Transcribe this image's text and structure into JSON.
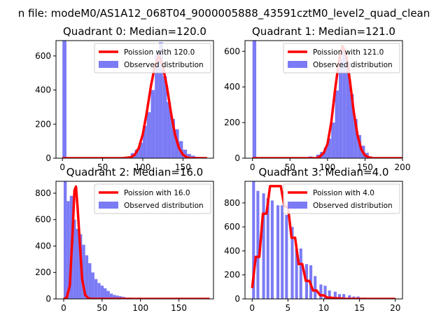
{
  "figure": {
    "suptitle": "n file: modeM0/AS1A12_068T04_9000005888_43591cztM0_level2_quad_clean"
  },
  "chart_data": [
    {
      "type": "bar",
      "title": "Quadrant 0: Median=120.0",
      "bar_color": "#7b7bf5",
      "line_color": "#ff0000",
      "xlim": [
        -8,
        188
      ],
      "ylim": [
        0,
        690
      ],
      "xticks": [
        0,
        50,
        100,
        150
      ],
      "yticks": [
        0,
        200,
        400,
        600
      ],
      "bin_width": 5,
      "hist": {
        "x": [
          0,
          85,
          90,
          95,
          100,
          105,
          110,
          115,
          120,
          125,
          130,
          135,
          140,
          145,
          150,
          155,
          160,
          165,
          170,
          175
        ],
        "y": [
          690,
          30,
          50,
          90,
          190,
          270,
          400,
          610,
          680,
          480,
          330,
          230,
          170,
          100,
          50,
          25,
          15,
          8,
          5,
          0
        ]
      },
      "line": {
        "x": [
          0,
          75,
          85,
          90,
          95,
          100,
          105,
          110,
          115,
          120,
          125,
          130,
          135,
          140,
          145,
          150,
          155,
          160,
          180
        ],
        "y": [
          0,
          0,
          5,
          20,
          60,
          140,
          270,
          420,
          540,
          600,
          540,
          420,
          270,
          140,
          60,
          20,
          5,
          0,
          0
        ]
      },
      "legend": {
        "line_label": "Poission with 120.0",
        "bar_label": "Observed distribution",
        "position": "upper right"
      }
    },
    {
      "type": "bar",
      "title": "Quadrant 1: Median=121.0",
      "bar_color": "#7b7bf5",
      "line_color": "#ff0000",
      "xlim": [
        -10,
        200
      ],
      "ylim": [
        0,
        660
      ],
      "xticks": [
        0,
        50,
        100,
        150,
        200
      ],
      "yticks": [
        0,
        200,
        400,
        600
      ],
      "bin_width": 5,
      "hist": {
        "x": [
          0,
          65,
          75,
          85,
          90,
          95,
          100,
          105,
          110,
          115,
          120,
          125,
          130,
          135,
          140,
          145,
          150,
          155,
          160,
          170
        ],
        "y": [
          660,
          5,
          10,
          20,
          35,
          60,
          110,
          200,
          380,
          560,
          620,
          540,
          360,
          220,
          130,
          70,
          30,
          10,
          5,
          5
        ]
      },
      "line": {
        "x": [
          0,
          85,
          90,
          95,
          100,
          105,
          110,
          115,
          120,
          125,
          130,
          135,
          140,
          145,
          150,
          155,
          160,
          200
        ],
        "y": [
          0,
          0,
          10,
          30,
          80,
          200,
          380,
          540,
          630,
          580,
          430,
          260,
          130,
          50,
          15,
          5,
          0,
          0
        ]
      },
      "legend": {
        "line_label": "Poission with 121.0",
        "bar_label": "Observed distribution",
        "position": "upper right"
      }
    },
    {
      "type": "bar",
      "title": "Quadrant 2: Median=16.0",
      "bar_color": "#7b7bf5",
      "line_color": "#ff0000",
      "xlim": [
        -10,
        195
      ],
      "ylim": [
        0,
        890
      ],
      "xticks": [
        0,
        50,
        100,
        150
      ],
      "yticks": [
        0,
        200,
        400,
        600,
        800
      ],
      "bin_width": 4,
      "hist": {
        "x": [
          0,
          4,
          8,
          12,
          16,
          20,
          24,
          28,
          32,
          36,
          40,
          44,
          48,
          52,
          56,
          60,
          64,
          68,
          72,
          76,
          80,
          84,
          88,
          92,
          96,
          100,
          104,
          108
        ],
        "y": [
          890,
          740,
          780,
          600,
          530,
          490,
          410,
          330,
          270,
          200,
          150,
          120,
          100,
          80,
          60,
          40,
          30,
          25,
          20,
          15,
          10,
          10,
          8,
          5,
          5,
          3,
          2,
          2
        ]
      },
      "line": {
        "x": [
          0,
          4,
          8,
          12,
          14,
          16,
          18,
          20,
          24,
          28,
          32,
          36,
          190
        ],
        "y": [
          0,
          10,
          100,
          550,
          820,
          850,
          700,
          520,
          150,
          30,
          5,
          0,
          0
        ]
      },
      "legend": {
        "line_label": "Poission with 16.0",
        "bar_label": "Observed distribution",
        "position": "upper right"
      }
    },
    {
      "type": "bar",
      "title": "Quadrant 3: Median=4.0",
      "bar_color": "#7b7bf5",
      "line_color": "#ff0000",
      "xlim": [
        -1,
        21
      ],
      "ylim": [
        0,
        980
      ],
      "xticks": [
        0,
        5,
        10,
        15,
        20
      ],
      "yticks": [
        0,
        200,
        400,
        600,
        800
      ],
      "bin_width": 0.4,
      "hist": {
        "x": [
          0,
          0.6,
          1.4,
          2.0,
          2.6,
          3.4,
          4.0,
          4.6,
          5.4,
          6.0,
          6.6,
          7.4,
          8.0,
          8.6,
          9.4,
          10.0,
          10.6,
          11.4,
          12.0,
          12.6,
          13.4,
          14.0,
          14.6,
          15.4
        ],
        "y": [
          980,
          900,
          880,
          840,
          820,
          780,
          780,
          700,
          600,
          420,
          420,
          290,
          280,
          190,
          120,
          110,
          70,
          60,
          40,
          40,
          30,
          20,
          20,
          10
        ]
      },
      "line": {
        "x": [
          0,
          0.5,
          1,
          1.5,
          2,
          2.5,
          3,
          3.5,
          4,
          4.5,
          5,
          5.5,
          6,
          6.5,
          7,
          7.5,
          8,
          8.5,
          9,
          9.5,
          10,
          10.5,
          11,
          11.5,
          12,
          13,
          20
        ],
        "y": [
          90,
          350,
          350,
          710,
          710,
          940,
          940,
          940,
          940,
          770,
          770,
          510,
          510,
          290,
          290,
          150,
          150,
          70,
          70,
          30,
          30,
          10,
          10,
          5,
          5,
          0,
          0
        ]
      },
      "legend": {
        "line_label": "Poission with 4.0",
        "bar_label": "Observed distribution",
        "position": "upper right"
      }
    }
  ]
}
